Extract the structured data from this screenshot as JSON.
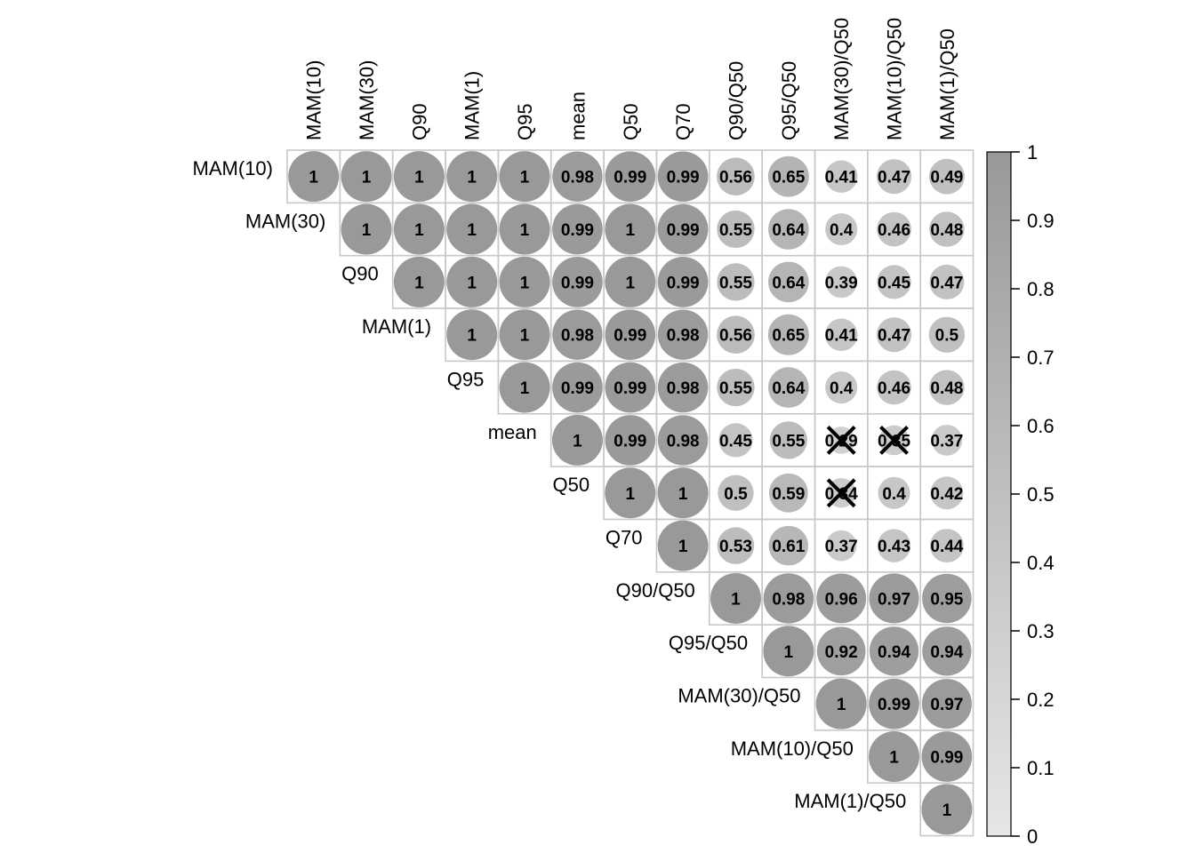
{
  "chart_data": {
    "type": "heatmap",
    "subtype": "correlation-upper-triangle-circles",
    "variables": [
      "MAM(10)",
      "MAM(30)",
      "Q90",
      "MAM(1)",
      "Q95",
      "mean",
      "Q50",
      "Q70",
      "Q90/Q50",
      "Q95/Q50",
      "MAM(30)/Q50",
      "MAM(10)/Q50",
      "MAM(1)/Q50"
    ],
    "matrix": [
      [
        1,
        1,
        1,
        1,
        1,
        0.98,
        0.99,
        0.99,
        0.56,
        0.65,
        0.41,
        0.47,
        0.49
      ],
      [
        null,
        1,
        1,
        1,
        1,
        0.99,
        1,
        0.99,
        0.55,
        0.64,
        0.4,
        0.46,
        0.48
      ],
      [
        null,
        null,
        1,
        1,
        1,
        0.99,
        1,
        0.99,
        0.55,
        0.64,
        0.39,
        0.45,
        0.47
      ],
      [
        null,
        null,
        null,
        1,
        1,
        0.98,
        0.99,
        0.98,
        0.56,
        0.65,
        0.41,
        0.47,
        0.5
      ],
      [
        null,
        null,
        null,
        null,
        1,
        0.99,
        0.99,
        0.98,
        0.55,
        0.64,
        0.4,
        0.46,
        0.48
      ],
      [
        null,
        null,
        null,
        null,
        null,
        1,
        0.99,
        0.98,
        0.45,
        0.55,
        0.29,
        0.35,
        0.37
      ],
      [
        null,
        null,
        null,
        null,
        null,
        null,
        1,
        1,
        0.5,
        0.59,
        0.34,
        0.4,
        0.42
      ],
      [
        null,
        null,
        null,
        null,
        null,
        null,
        null,
        1,
        0.53,
        0.61,
        0.37,
        0.43,
        0.44
      ],
      [
        null,
        null,
        null,
        null,
        null,
        null,
        null,
        null,
        1,
        0.98,
        0.96,
        0.97,
        0.95
      ],
      [
        null,
        null,
        null,
        null,
        null,
        null,
        null,
        null,
        null,
        1,
        0.92,
        0.94,
        0.94
      ],
      [
        null,
        null,
        null,
        null,
        null,
        null,
        null,
        null,
        null,
        null,
        1,
        0.99,
        0.97
      ],
      [
        null,
        null,
        null,
        null,
        null,
        null,
        null,
        null,
        null,
        null,
        null,
        1,
        0.99
      ],
      [
        null,
        null,
        null,
        null,
        null,
        null,
        null,
        null,
        null,
        null,
        null,
        null,
        1
      ]
    ],
    "insignificant": [
      [
        5,
        10
      ],
      [
        5,
        11
      ],
      [
        6,
        10
      ]
    ],
    "colorbar": {
      "ticks": [
        "1",
        "0.9",
        "0.8",
        "0.7",
        "0.6",
        "0.5",
        "0.4",
        "0.3",
        "0.2",
        "0.1",
        "0"
      ],
      "range": [
        0,
        1
      ],
      "low_color": "#e6e6e6",
      "high_color": "#999999"
    },
    "colors": {
      "circle_low": "#e6e6e6",
      "circle_high": "#999999",
      "grid": "#c8c8c8",
      "cross": "#000000"
    }
  }
}
